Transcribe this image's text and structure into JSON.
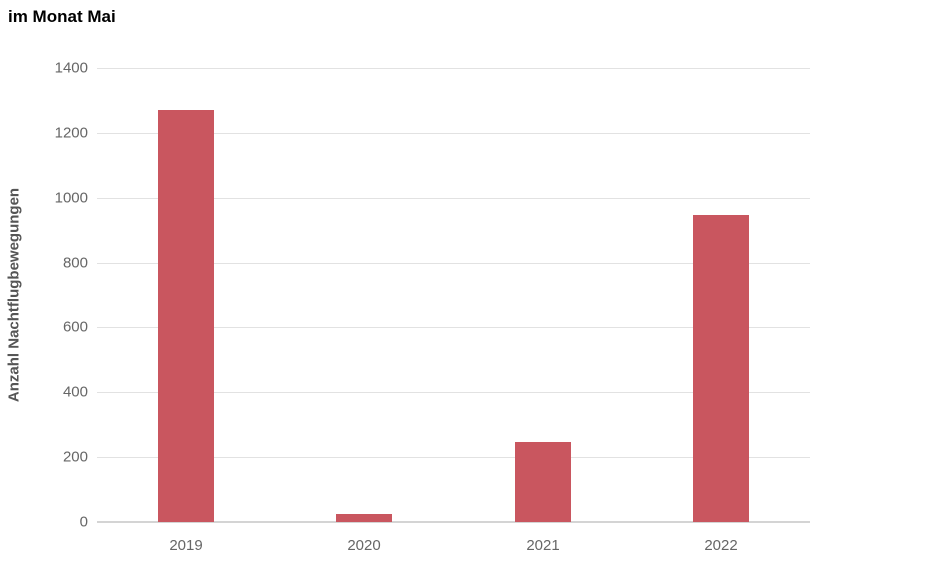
{
  "chart_data": {
    "type": "bar",
    "title": "im Monat Mai",
    "xlabel": "",
    "ylabel": "Anzahl Nachtflugbewegungen",
    "categories": [
      "2019",
      "2020",
      "2021",
      "2022"
    ],
    "values": [
      1270,
      25,
      248,
      948
    ],
    "ylim": [
      0,
      1400
    ],
    "yticks": [
      0,
      200,
      400,
      600,
      800,
      1000,
      1200,
      1400
    ],
    "grid": "horizontal",
    "legend": "none",
    "bar_color": "#c9565f",
    "colors": {
      "title": "#000000",
      "axis_title": "#555555",
      "tick_label": "#666666",
      "gridline": "#e2e2e2",
      "axis_line": "#d4d4d4",
      "background": "#ffffff"
    }
  }
}
